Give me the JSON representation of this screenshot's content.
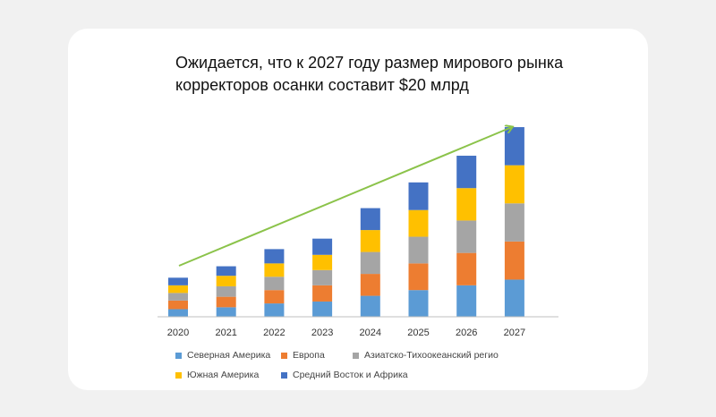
{
  "chart_data": {
    "type": "bar",
    "stacked": true,
    "title": "Ожидается, что к 2027 году размер мирового рынка корректоров осанки составит $20 млрд",
    "xlabel": "",
    "ylabel": "",
    "ylim": [
      0,
      20
    ],
    "grid": false,
    "legend_position": "bottom",
    "trend_arrow": true,
    "categories": [
      "2020",
      "2021",
      "2022",
      "2023",
      "2024",
      "2025",
      "2026",
      "2027"
    ],
    "series": [
      {
        "name": "Северная Америка",
        "color": "#5b9bd5",
        "values": [
          0.8,
          1.0,
          1.4,
          1.6,
          2.2,
          2.8,
          3.3,
          3.9
        ]
      },
      {
        "name": "Европа",
        "color": "#ed7d31",
        "values": [
          0.9,
          1.1,
          1.4,
          1.7,
          2.3,
          2.8,
          3.4,
          4.0
        ]
      },
      {
        "name": "Азиатско-Тихоокеанский регио",
        "color": "#a5a5a5",
        "values": [
          0.8,
          1.1,
          1.4,
          1.6,
          2.3,
          2.8,
          3.4,
          4.0
        ]
      },
      {
        "name": "Южная Америка",
        "color": "#ffc000",
        "values": [
          0.8,
          1.1,
          1.4,
          1.6,
          2.3,
          2.8,
          3.4,
          4.0
        ]
      },
      {
        "name": "Средний Восток и Африка",
        "color": "#4472c4",
        "values": [
          0.8,
          1.0,
          1.5,
          1.7,
          2.3,
          2.9,
          3.4,
          4.0
        ]
      }
    ]
  }
}
